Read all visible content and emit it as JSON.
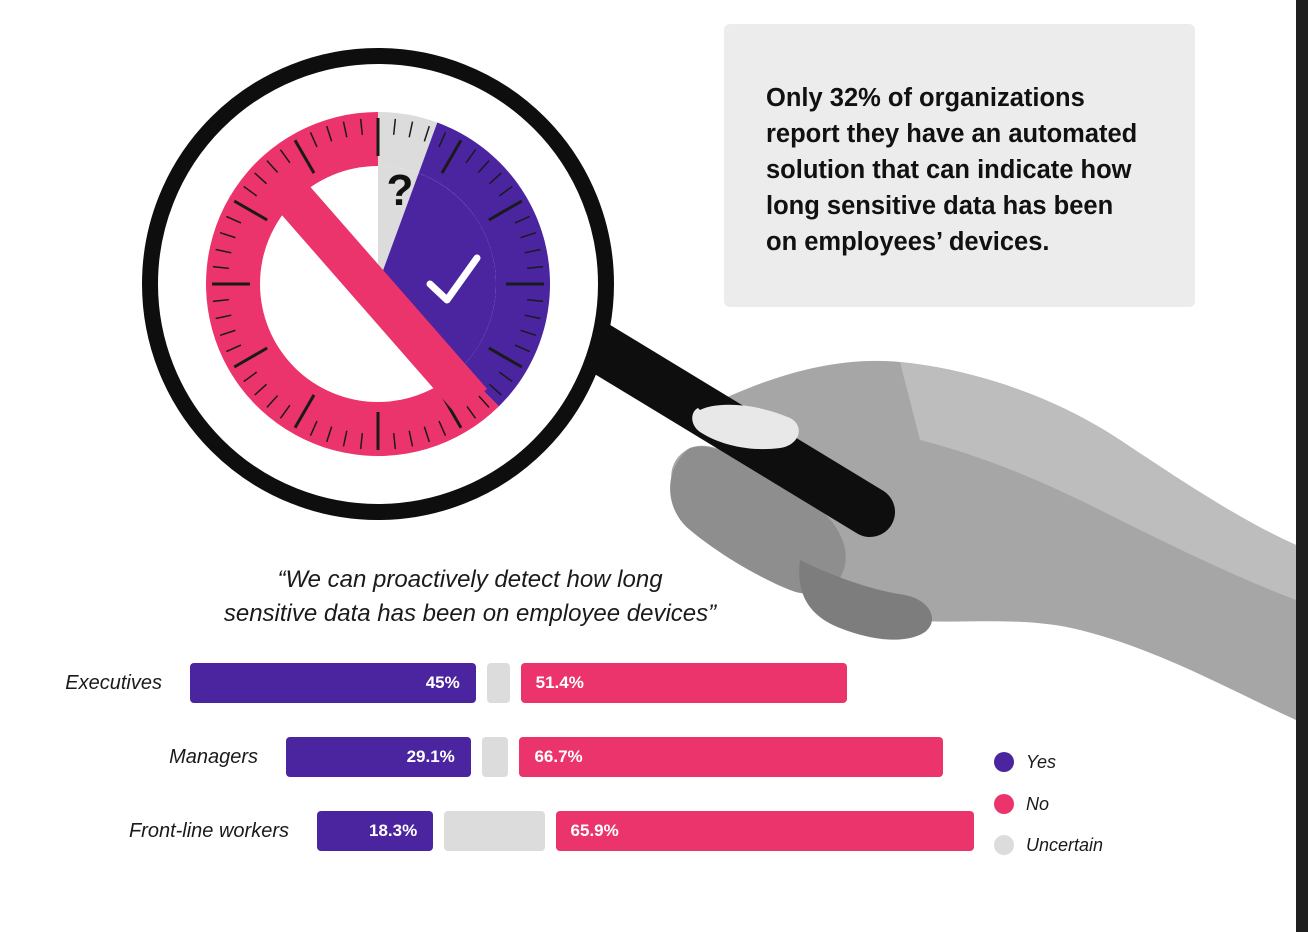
{
  "callout": {
    "lines": [
      "Only 32% of organizations",
      "report they have an automated",
      "solution that can indicate how",
      "long sensitive data has been",
      "on employees’ devices."
    ]
  },
  "clock": {
    "question_mark": "?",
    "segments": [
      {
        "name": "Uncertain",
        "share": 0.056
      },
      {
        "name": "Yes",
        "share": 0.32
      },
      {
        "name": "No",
        "share": 0.624
      }
    ]
  },
  "colors": {
    "yes": "#4b25a0",
    "no": "#eb346b",
    "uncertain": "#dcdcdc",
    "callout_bg": "#ececec"
  },
  "chart_data": {
    "type": "bar",
    "title": "“We can proactively detect how long sensitive data has been on employee devices”",
    "title_lines": [
      "“We can proactively detect how long",
      "sensitive data has been on employee devices”"
    ],
    "categories": [
      "Executives",
      "Managers",
      "Front-line workers"
    ],
    "stacked": true,
    "orientation": "horizontal",
    "series": [
      {
        "name": "Yes",
        "values": [
          45,
          29.1,
          18.3
        ],
        "labels": [
          "45%",
          "29.1%",
          "18.3%"
        ],
        "color": "#4b25a0"
      },
      {
        "name": "Uncertain",
        "values": [
          3.6,
          4.2,
          15.8
        ],
        "color": "#dcdcdc"
      },
      {
        "name": "No",
        "values": [
          51.4,
          66.7,
          65.9
        ],
        "labels": [
          "51.4%",
          "66.7%",
          "65.9%"
        ],
        "color": "#eb346b"
      }
    ],
    "legend": {
      "position": "right",
      "entries": [
        "Yes",
        "No",
        "Uncertain"
      ]
    },
    "grid": false
  }
}
